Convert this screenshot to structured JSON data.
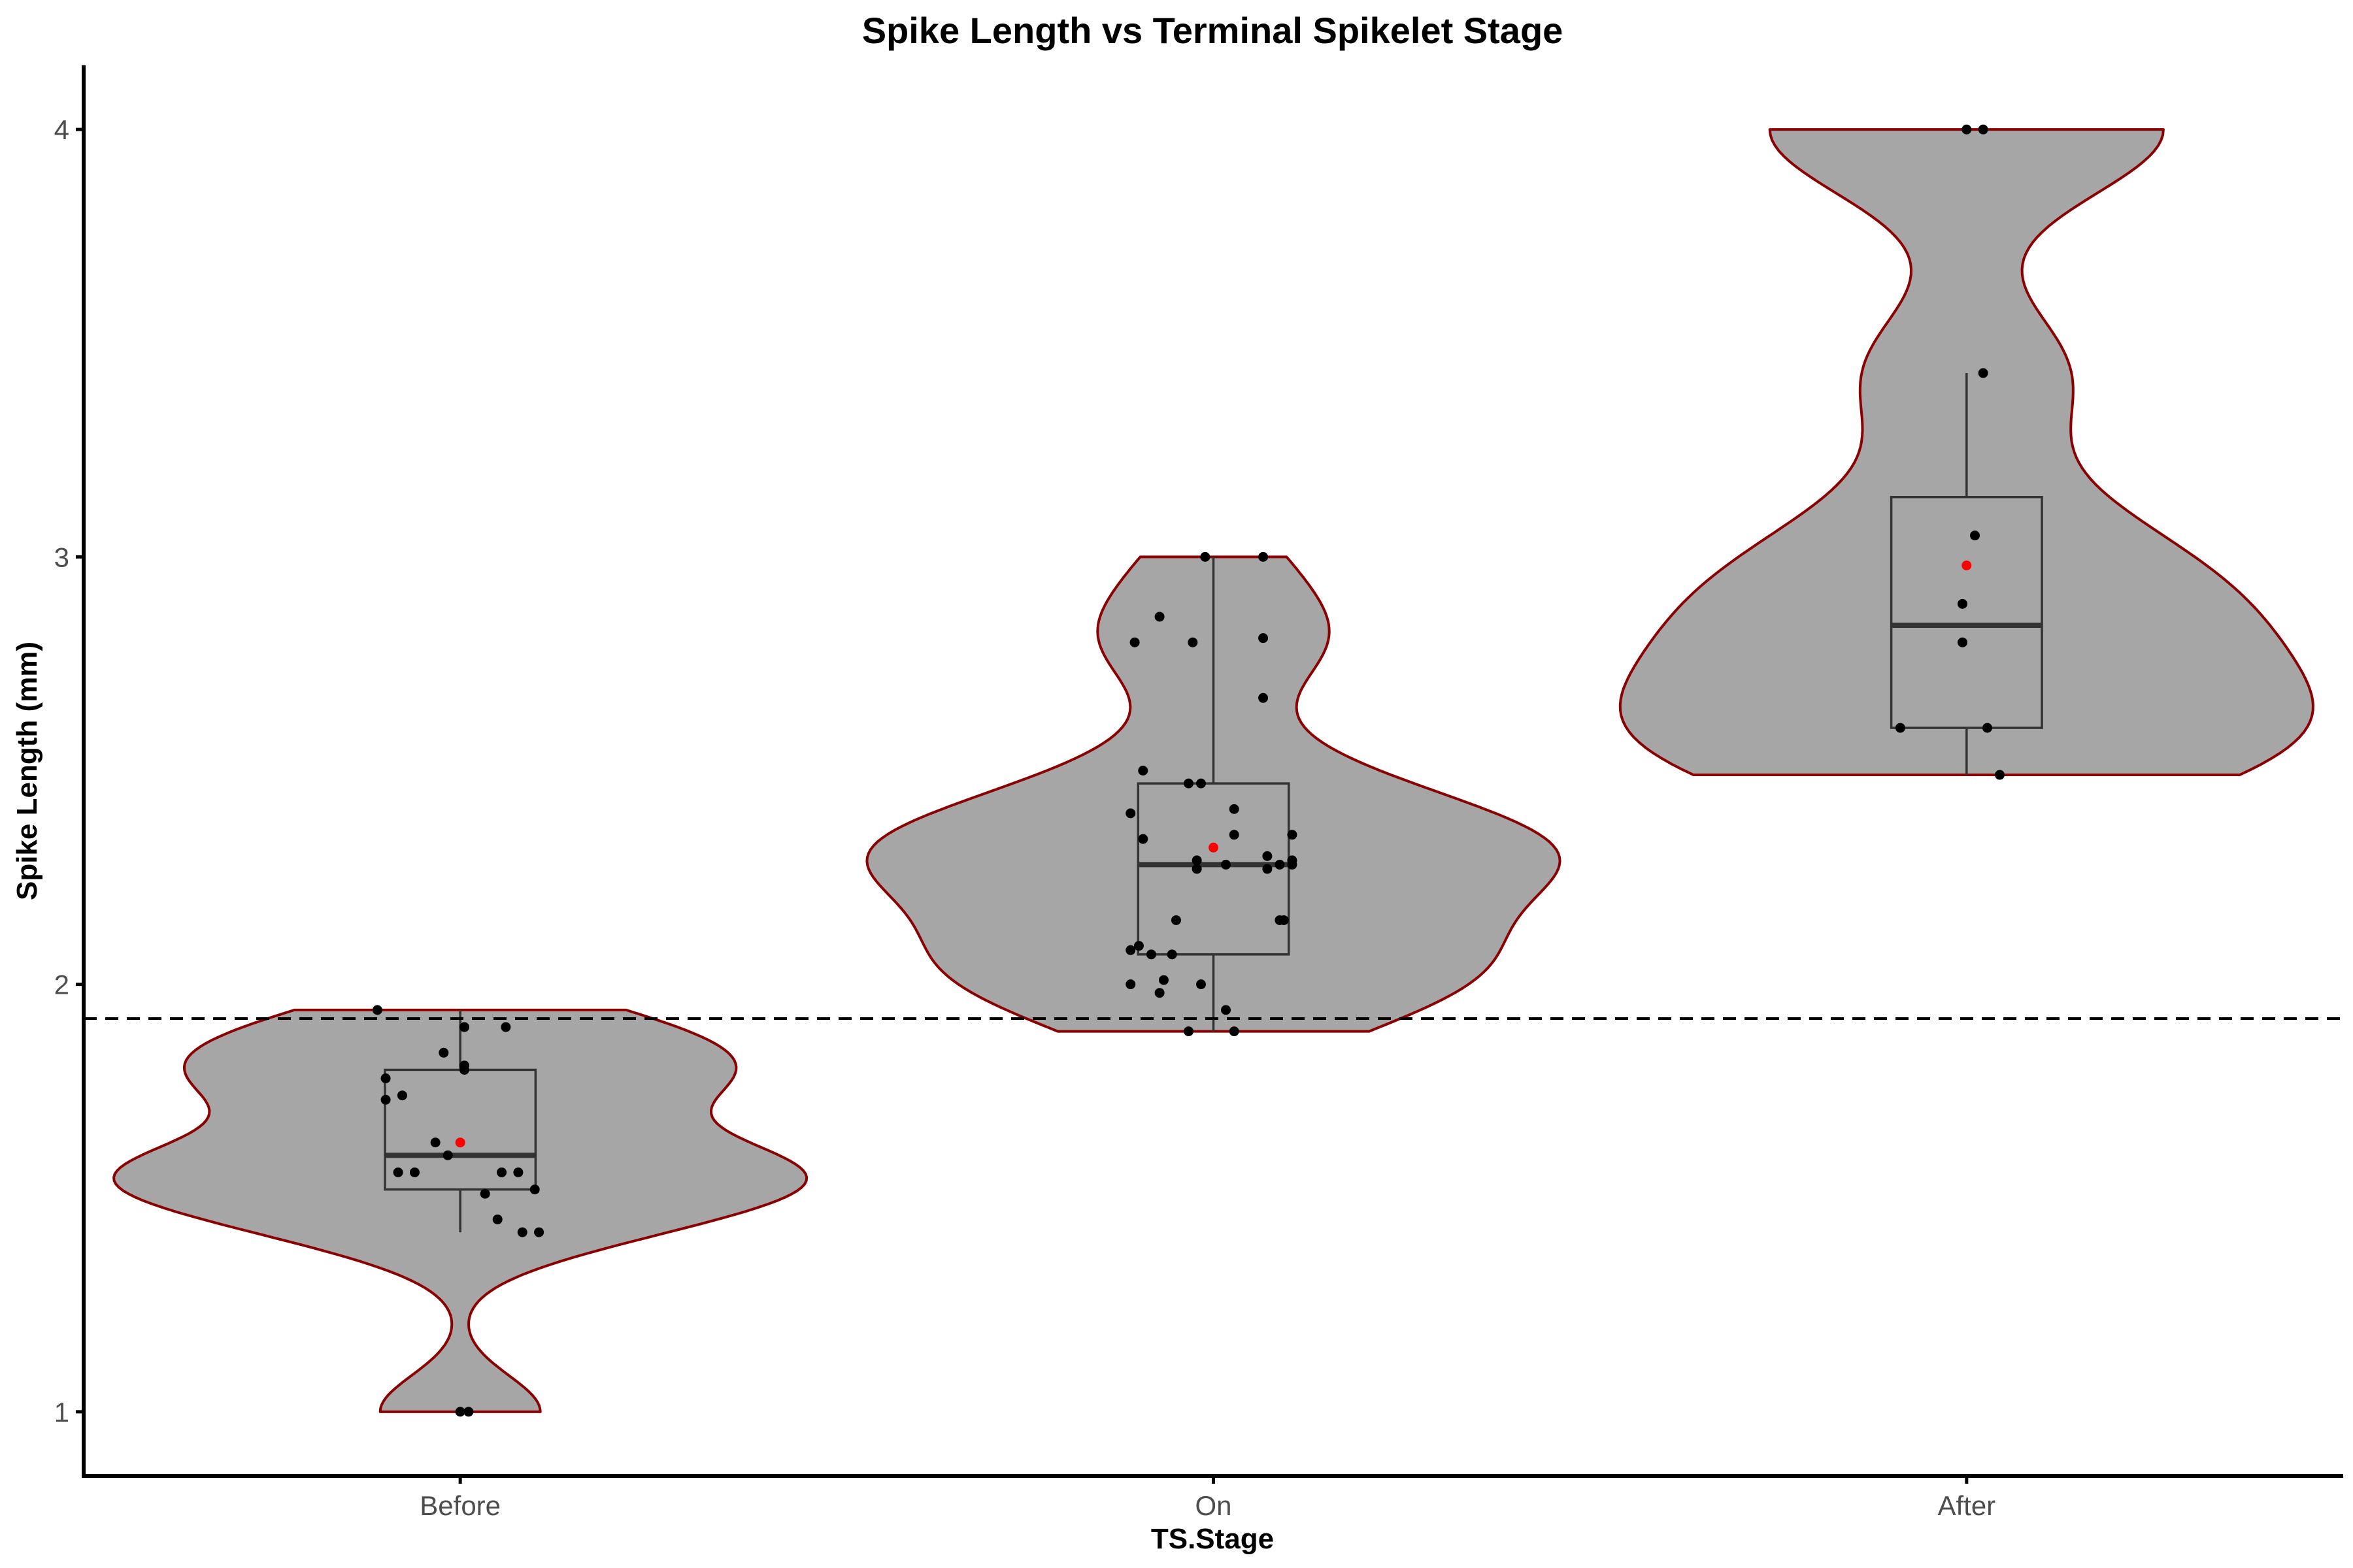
{
  "chart_data": {
    "type": "violin",
    "title": "Spike Length vs Terminal Spikelet Stage",
    "xlabel": "TS.Stage",
    "ylabel": "Spike Length (mm)",
    "categories": [
      "Before",
      "On",
      "After"
    ],
    "yticks": [
      1,
      2,
      3,
      4
    ],
    "ylim": [
      0.85,
      4.15
    ],
    "reference_line": {
      "y": 1.92,
      "style": "dashed"
    },
    "grid": false,
    "colors": {
      "violin_fill": "#a6a6a6",
      "violin_outline": "#8b0000",
      "box_outline": "#333333",
      "points": "#000000",
      "mean": "#ff0000"
    },
    "groups": [
      {
        "name": "Before",
        "violin_range": [
          1.0,
          1.94
        ],
        "box": {
          "lower_whisker": 1.42,
          "q1": 1.52,
          "median": 1.6,
          "q3": 1.8,
          "upper_whisker": 1.94
        },
        "mean": 1.63,
        "points": [
          [
            -0.2,
            1.94
          ],
          [
            0.01,
            1.9
          ],
          [
            0.11,
            1.9
          ],
          [
            -0.04,
            1.84
          ],
          [
            0.01,
            1.81
          ],
          [
            0.01,
            1.8
          ],
          [
            -0.18,
            1.78
          ],
          [
            -0.18,
            1.73
          ],
          [
            -0.14,
            1.74
          ],
          [
            -0.06,
            1.63
          ],
          [
            -0.03,
            1.6
          ],
          [
            -0.15,
            1.56
          ],
          [
            -0.11,
            1.56
          ],
          [
            0.1,
            1.56
          ],
          [
            0.14,
            1.56
          ],
          [
            0.06,
            1.51
          ],
          [
            0.18,
            1.52
          ],
          [
            0.09,
            1.45
          ],
          [
            0.15,
            1.42
          ],
          [
            0.19,
            1.42
          ],
          [
            0.0,
            1.0
          ],
          [
            0.02,
            1.0
          ]
        ]
      },
      {
        "name": "On",
        "violin_range": [
          1.89,
          3.0
        ],
        "box": {
          "lower_whisker": 1.89,
          "q1": 2.07,
          "median": 2.28,
          "q3": 2.47,
          "upper_whisker": 3.0
        },
        "mean": 2.32,
        "points": [
          [
            -0.02,
            3.0
          ],
          [
            0.12,
            3.0
          ],
          [
            -0.13,
            2.86
          ],
          [
            -0.19,
            2.8
          ],
          [
            -0.05,
            2.8
          ],
          [
            0.12,
            2.81
          ],
          [
            0.12,
            2.67
          ],
          [
            -0.17,
            2.5
          ],
          [
            -0.06,
            2.47
          ],
          [
            -0.03,
            2.47
          ],
          [
            -0.2,
            2.4
          ],
          [
            0.05,
            2.41
          ],
          [
            -0.17,
            2.34
          ],
          [
            0.05,
            2.35
          ],
          [
            0.19,
            2.35
          ],
          [
            -0.04,
            2.29
          ],
          [
            -0.04,
            2.27
          ],
          [
            0.03,
            2.28
          ],
          [
            0.13,
            2.3
          ],
          [
            0.16,
            2.28
          ],
          [
            0.19,
            2.29
          ],
          [
            0.19,
            2.28
          ],
          [
            0.13,
            2.27
          ],
          [
            -0.09,
            2.15
          ],
          [
            0.16,
            2.15
          ],
          [
            0.17,
            2.15
          ],
          [
            -0.2,
            2.08
          ],
          [
            -0.18,
            2.09
          ],
          [
            -0.15,
            2.07
          ],
          [
            -0.1,
            2.07
          ],
          [
            -0.2,
            2.0
          ],
          [
            -0.12,
            2.01
          ],
          [
            -0.13,
            1.98
          ],
          [
            -0.03,
            2.0
          ],
          [
            0.03,
            1.94
          ],
          [
            -0.06,
            1.89
          ],
          [
            0.05,
            1.89
          ]
        ]
      },
      {
        "name": "After",
        "violin_range": [
          2.49,
          4.0
        ],
        "box": {
          "lower_whisker": 2.49,
          "q1": 2.6,
          "median": 2.84,
          "q3": 3.14,
          "upper_whisker": 3.43
        },
        "mean": 2.98,
        "points": [
          [
            0.0,
            4.0
          ],
          [
            0.04,
            4.0
          ],
          [
            0.04,
            3.43
          ],
          [
            0.02,
            3.05
          ],
          [
            -0.01,
            2.89
          ],
          [
            -0.01,
            2.8
          ],
          [
            -0.16,
            2.6
          ],
          [
            0.05,
            2.6
          ],
          [
            0.08,
            2.49
          ]
        ]
      }
    ]
  }
}
